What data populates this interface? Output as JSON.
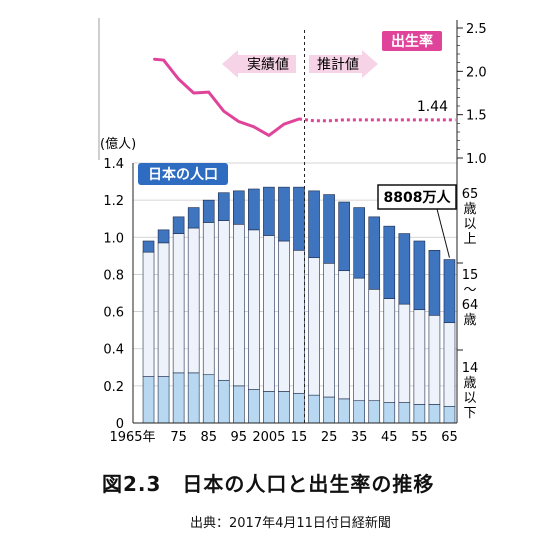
{
  "caption": "図2.3　日本の人口と出生率の推移",
  "source": "出典：2017年4月11日付日経新聞",
  "colors": {
    "age65": "#3f74bf",
    "age15_64": "#eef3fb",
    "age0_14": "#b7d8f0",
    "birth_rate": "#e0449a",
    "badge": "#2d6cc0",
    "arrow": "#f6d3e6"
  },
  "chart_data": [
    {
      "type": "bar",
      "stacked": true,
      "title": "日本の人口",
      "ylabel": "(億人)",
      "ylim": [
        0,
        1.4
      ],
      "y_ticks": [
        "0",
        "0.2",
        "0.4",
        "0.6",
        "0.8",
        "1.0",
        "1.2",
        "1.4"
      ],
      "x_tick_labels": [
        "1965年",
        "75",
        "85",
        "95",
        "2005",
        "15",
        "25",
        "35",
        "45",
        "55",
        "65"
      ],
      "categories": [
        "1965",
        "1970",
        "1975",
        "1980",
        "1985",
        "1990",
        "1995",
        "2000",
        "2005",
        "2010",
        "2015",
        "2020",
        "2025",
        "2030",
        "2035",
        "2040",
        "2045",
        "2050",
        "2055",
        "2060",
        "2065"
      ],
      "series": [
        {
          "name": "14歳以下",
          "values": [
            0.25,
            0.25,
            0.27,
            0.27,
            0.26,
            0.23,
            0.2,
            0.18,
            0.17,
            0.17,
            0.16,
            0.15,
            0.14,
            0.13,
            0.12,
            0.12,
            0.11,
            0.11,
            0.1,
            0.1,
            0.09
          ]
        },
        {
          "name": "15〜64歳",
          "values": [
            0.67,
            0.72,
            0.75,
            0.78,
            0.82,
            0.86,
            0.87,
            0.86,
            0.84,
            0.81,
            0.77,
            0.74,
            0.72,
            0.69,
            0.66,
            0.6,
            0.56,
            0.53,
            0.51,
            0.48,
            0.45
          ]
        },
        {
          "name": "65歳以上",
          "values": [
            0.06,
            0.07,
            0.09,
            0.11,
            0.12,
            0.15,
            0.18,
            0.22,
            0.26,
            0.29,
            0.34,
            0.36,
            0.37,
            0.37,
            0.38,
            0.39,
            0.39,
            0.38,
            0.37,
            0.35,
            0.34
          ]
        }
      ],
      "series_labels": [
        "14\n歳\n以\n下",
        "15\n〜\n64\n歳",
        "65\n歳\n以\n上"
      ],
      "annotation": "8808万人"
    },
    {
      "type": "line",
      "title": "出生率",
      "ylim": [
        1.0,
        2.5
      ],
      "y_ticks": [
        "1.0",
        "1.5",
        "2.0",
        "2.5"
      ],
      "actual": {
        "name": "実績値",
        "x": [
          1965,
          1970,
          1975,
          1980,
          1985,
          1990,
          1995,
          2000,
          2005,
          2010,
          2015
        ],
        "values": [
          2.14,
          2.13,
          1.91,
          1.75,
          1.76,
          1.54,
          1.42,
          1.36,
          1.26,
          1.39,
          1.45
        ]
      },
      "projected": {
        "name": "推計値",
        "x": [
          2015,
          2020,
          2025,
          2030,
          2035,
          2040,
          2045,
          2050,
          2055,
          2060,
          2065
        ],
        "values": [
          1.45,
          1.43,
          1.43,
          1.44,
          1.44,
          1.44,
          1.44,
          1.44,
          1.44,
          1.44,
          1.44
        ]
      },
      "end_label": "1.44"
    }
  ]
}
